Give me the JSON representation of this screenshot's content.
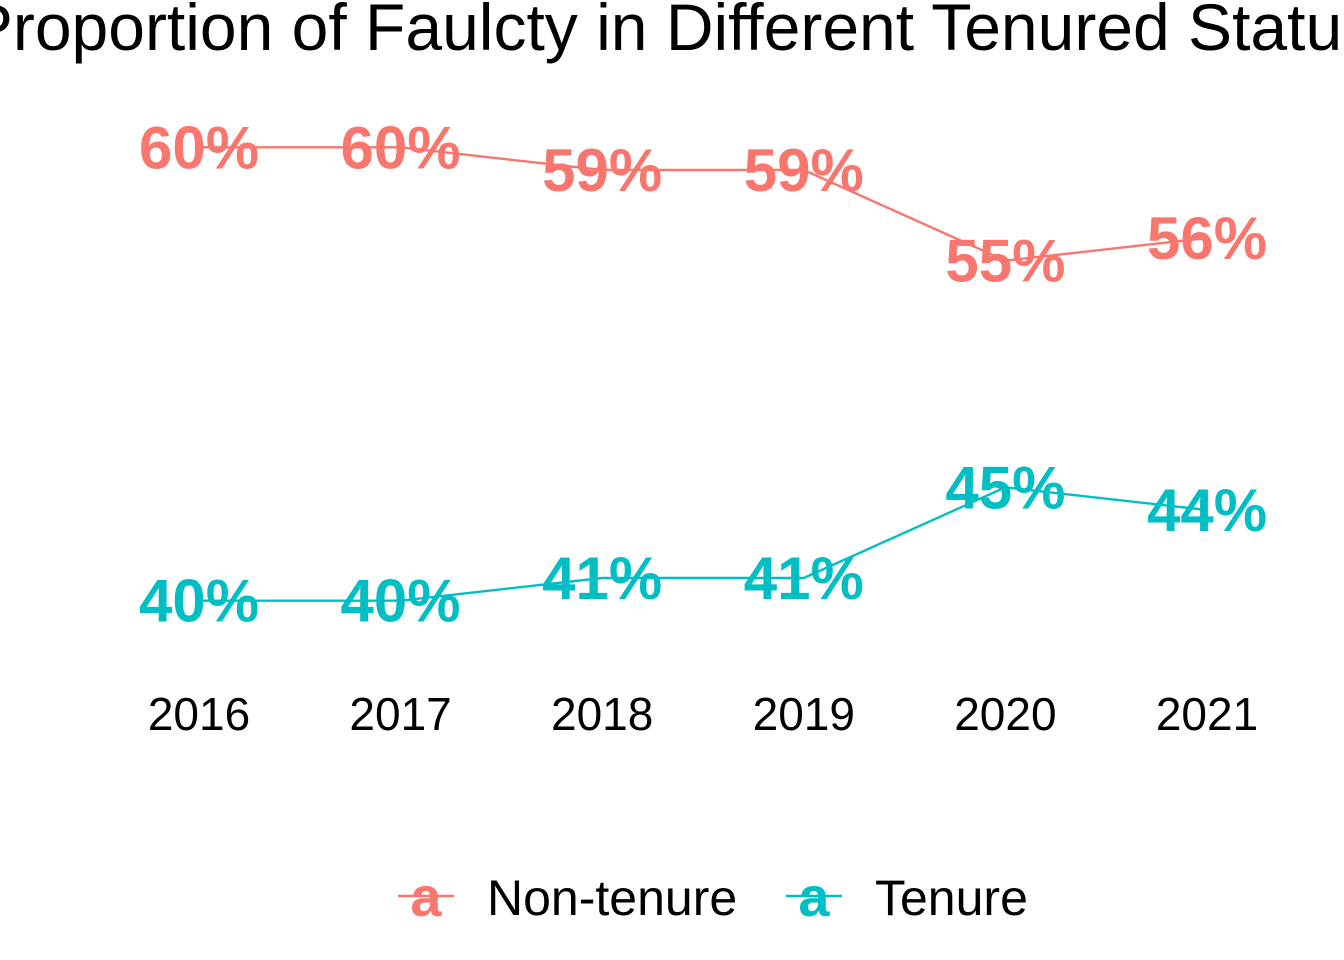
{
  "chart_data": {
    "type": "line",
    "title": "Proportion of Faulcty in Different Tenured Status",
    "xlabel": "",
    "ylabel": "",
    "x": [
      "2016",
      "2017",
      "2018",
      "2019",
      "2020",
      "2021"
    ],
    "ylim": [
      0.38,
      0.62
    ],
    "grid": false,
    "legend_position": "bottom",
    "legend_key_glyph": "a",
    "series": [
      {
        "name": "Non-tenure",
        "color": "#F8766D",
        "values": [
          0.6,
          0.6,
          0.59,
          0.59,
          0.55,
          0.56
        ],
        "labels": [
          "60%",
          "60%",
          "59%",
          "59%",
          "55%",
          "56%"
        ]
      },
      {
        "name": "Tenure",
        "color": "#00BFC4",
        "values": [
          0.4,
          0.4,
          0.41,
          0.41,
          0.45,
          0.44
        ],
        "labels": [
          "40%",
          "40%",
          "41%",
          "41%",
          "45%",
          "44%"
        ]
      }
    ]
  }
}
